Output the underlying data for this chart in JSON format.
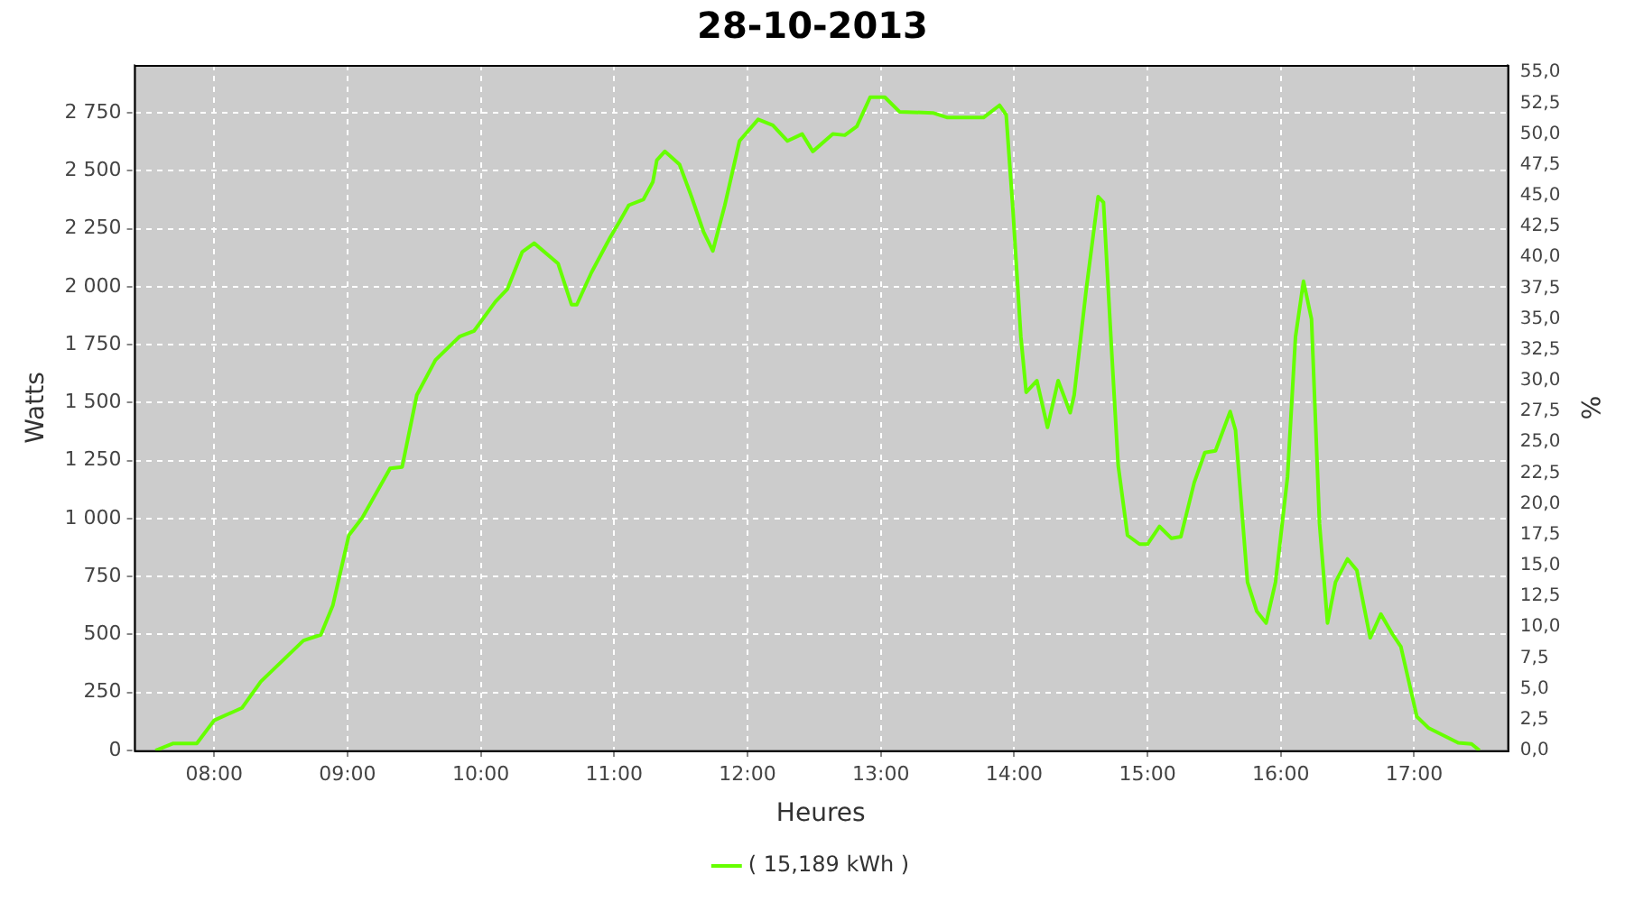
{
  "chart_data": {
    "type": "line",
    "title": "28-10-2013",
    "xlabel": "Heures",
    "ylabel": "Watts",
    "y2label": "%",
    "xlim": [
      7.4,
      17.7
    ],
    "xticks": [
      {
        "value": 8,
        "label": "08:00"
      },
      {
        "value": 9,
        "label": "09:00"
      },
      {
        "value": 10,
        "label": "10:00"
      },
      {
        "value": 11,
        "label": "11:00"
      },
      {
        "value": 12,
        "label": "12:00"
      },
      {
        "value": 13,
        "label": "13:00"
      },
      {
        "value": 14,
        "label": "14:00"
      },
      {
        "value": 15,
        "label": "15:00"
      },
      {
        "value": 16,
        "label": "16:00"
      },
      {
        "value": 17,
        "label": "17:00"
      }
    ],
    "ylim": [
      0,
      2957
    ],
    "yticks": [
      0,
      250,
      500,
      750,
      {
        "value": 1000,
        "label": "1 000"
      },
      {
        "value": 1250,
        "label": "1 250"
      },
      {
        "value": 1500,
        "label": "1 500"
      },
      {
        "value": 1750,
        "label": "1 750"
      },
      {
        "value": 2000,
        "label": "2 000"
      },
      {
        "value": 2250,
        "label": "2 250"
      },
      {
        "value": 2500,
        "label": "2 500"
      },
      {
        "value": 2750,
        "label": "2 750"
      }
    ],
    "y2lim": [
      0,
      55.6
    ],
    "y2ticks": [
      {
        "value": 0,
        "label": "0,0"
      },
      {
        "value": 2.5,
        "label": "2,5"
      },
      {
        "value": 5,
        "label": "5,0"
      },
      {
        "value": 7.5,
        "label": "7,5"
      },
      {
        "value": 10,
        "label": "10,0"
      },
      {
        "value": 12.5,
        "label": "12,5"
      },
      {
        "value": 15,
        "label": "15,0"
      },
      {
        "value": 17.5,
        "label": "17,5"
      },
      {
        "value": 20,
        "label": "20,0"
      },
      {
        "value": 22.5,
        "label": "22,5"
      },
      {
        "value": 25,
        "label": "25,0"
      },
      {
        "value": 27.5,
        "label": "27,5"
      },
      {
        "value": 30,
        "label": "30,0"
      },
      {
        "value": 32.5,
        "label": "32,5"
      },
      {
        "value": 35,
        "label": "35,0"
      },
      {
        "value": 37.5,
        "label": "37,5"
      },
      {
        "value": 40,
        "label": "40,0"
      },
      {
        "value": 42.5,
        "label": "42,5"
      },
      {
        "value": 45,
        "label": "45,0"
      },
      {
        "value": 47.5,
        "label": "47,5"
      },
      {
        "value": 50,
        "label": "50,0"
      },
      {
        "value": 52.5,
        "label": "52,5"
      },
      {
        "value": 55,
        "label": "55,0"
      }
    ],
    "grid": true,
    "legend": "bottom",
    "marker": "none",
    "line_style": "solid",
    "series": [
      {
        "name": "( 15,189 kWh )",
        "color": "#66ff00",
        "x": [
          7.56,
          7.69,
          7.87,
          8.0,
          8.21,
          8.35,
          8.67,
          8.8,
          8.89,
          9.01,
          9.11,
          9.32,
          9.41,
          9.52,
          9.66,
          9.84,
          9.95,
          10.11,
          10.2,
          10.31,
          10.4,
          10.58,
          10.68,
          10.72,
          10.83,
          10.97,
          11.04,
          11.11,
          11.22,
          11.29,
          11.32,
          11.38,
          11.49,
          11.58,
          11.67,
          11.74,
          11.83,
          11.94,
          12.08,
          12.19,
          12.3,
          12.41,
          12.49,
          12.64,
          12.73,
          12.82,
          12.92,
          13.03,
          13.14,
          13.39,
          13.5,
          13.77,
          13.89,
          13.94,
          13.99,
          14.05,
          14.09,
          14.17,
          14.25,
          14.33,
          14.42,
          14.45,
          14.54,
          14.63,
          14.67,
          14.73,
          14.78,
          14.85,
          14.94,
          15.0,
          15.09,
          15.18,
          15.25,
          15.35,
          15.43,
          15.51,
          15.62,
          15.66,
          15.75,
          15.82,
          15.89,
          15.96,
          16.05,
          16.11,
          16.17,
          16.23,
          16.29,
          16.35,
          16.41,
          16.5,
          16.57,
          16.67,
          16.75,
          16.84,
          16.9,
          17.02,
          17.11,
          17.33,
          17.43,
          17.49
        ],
        "values": [
          0,
          30,
          30,
          130,
          184,
          297,
          474,
          499,
          625,
          928,
          1003,
          1217,
          1223,
          1533,
          1684,
          1785,
          1810,
          1936,
          1991,
          2150,
          2188,
          2100,
          1923,
          1923,
          2062,
          2213,
          2281,
          2352,
          2377,
          2452,
          2546,
          2584,
          2528,
          2389,
          2238,
          2155,
          2352,
          2629,
          2722,
          2697,
          2629,
          2659,
          2584,
          2659,
          2654,
          2692,
          2818,
          2818,
          2755,
          2750,
          2730,
          2730,
          2783,
          2742,
          2339,
          1785,
          1545,
          1595,
          1394,
          1595,
          1457,
          1533,
          1986,
          2389,
          2364,
          1734,
          1230,
          928,
          890,
          890,
          966,
          915,
          922,
          1155,
          1285,
          1293,
          1462,
          1381,
          726,
          600,
          550,
          726,
          1180,
          1785,
          2024,
          1860,
          978,
          550,
          726,
          826,
          777,
          486,
          588,
          499,
          448,
          146,
          96,
          33,
          28,
          0
        ]
      }
    ]
  }
}
